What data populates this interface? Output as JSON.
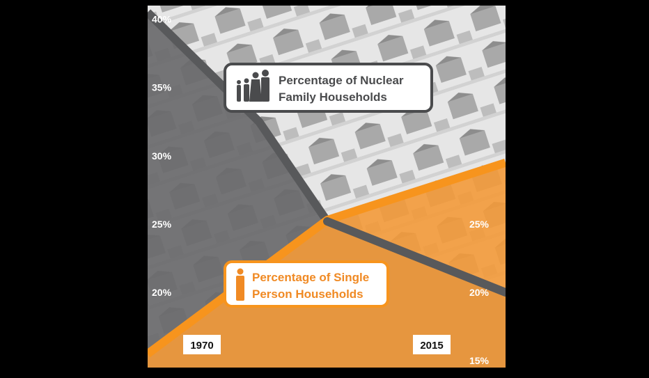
{
  "chart_data": {
    "type": "area",
    "x": [
      "1970",
      "2015"
    ],
    "series": [
      {
        "name": "Percentage of Nuclear Family Households",
        "values": [
          40.5,
          20.0
        ],
        "color": "#58595b"
      },
      {
        "name": "Percentage of Single Person Households",
        "values": [
          15.5,
          29.5
        ],
        "color": "#f7941d"
      }
    ],
    "left_ticks": [
      "40%",
      "35%",
      "30%",
      "25%",
      "20%"
    ],
    "right_ticks": [
      "25%",
      "20%",
      "15%"
    ],
    "x_labels": {
      "start": "1970",
      "end": "2015"
    },
    "ylim": [
      14.5,
      41
    ],
    "legend_placement": "inline",
    "grid": false,
    "icons": {
      "nuclear": "family-icon",
      "single": "person-icon"
    }
  }
}
